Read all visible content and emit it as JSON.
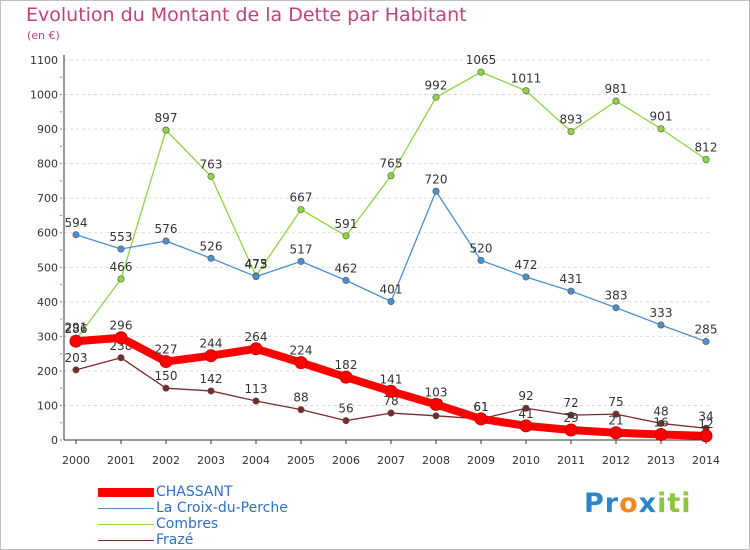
{
  "title": "Evolution du Montant de la Dette par Habitant",
  "unit_label": "(en €)",
  "brand": {
    "text": "Proxiti",
    "colors": [
      "#2a86c9",
      "#f08a1e",
      "#8cc63f"
    ]
  },
  "chart_data": {
    "type": "line",
    "title": "Evolution du Montant de la Dette par Habitant",
    "ylabel": "(en €)",
    "xlabel": "",
    "ylim": [
      0,
      1100
    ],
    "yticks": [
      0,
      100,
      200,
      300,
      400,
      500,
      600,
      700,
      800,
      900,
      1000,
      1100
    ],
    "grid": true,
    "legend_position": "bottom-left",
    "x": [
      "2000",
      "2001",
      "2002",
      "2003",
      "2004",
      "2005",
      "2006",
      "2007",
      "2008",
      "2009",
      "2010",
      "2011",
      "2012",
      "2013",
      "2014"
    ],
    "series": [
      {
        "name": "Frazé",
        "color": "#7a2a2a",
        "values": [
          203,
          238,
          150,
          142,
          113,
          88,
          56,
          78,
          70,
          61,
          92,
          72,
          75,
          48,
          34
        ]
      },
      {
        "name": "Combres",
        "color": "#8cd63f",
        "values": [
          291,
          466,
          897,
          763,
          475,
          667,
          591,
          765,
          992,
          1065,
          1011,
          893,
          981,
          901,
          812
        ]
      },
      {
        "name": "La Croix-du-Perche",
        "color": "#4a8fd0",
        "values": [
          594,
          553,
          576,
          526,
          473,
          517,
          462,
          401,
          720,
          520,
          472,
          431,
          383,
          333,
          285
        ]
      },
      {
        "name": "CHASSANT",
        "color": "#ff0000",
        "values": [
          286,
          296,
          227,
          244,
          264,
          224,
          182,
          141,
          103,
          61,
          41,
          29,
          21,
          16,
          12
        ]
      }
    ],
    "legend_order": [
      "CHASSANT",
      "La Croix-du-Perche",
      "Combres",
      "Frazé"
    ]
  }
}
